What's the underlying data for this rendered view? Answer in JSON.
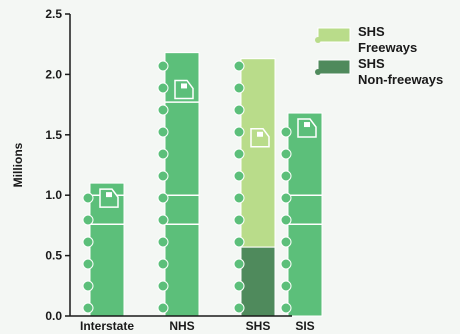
{
  "chart_data": {
    "type": "bar",
    "title": "",
    "xlabel": "",
    "ylabel": "Millions",
    "ylim": [
      0,
      2.5
    ],
    "yticks": [
      "0.0",
      "0.5",
      "1.0",
      "1.5",
      "2.0",
      "2.5"
    ],
    "grid": false,
    "legend_position": "top-right",
    "categories": [
      "Interstate",
      "NHS",
      "SHS",
      "SIS"
    ],
    "values": [
      1.1,
      2.18,
      2.13,
      1.68
    ],
    "series": [
      {
        "name": "SHS Freeways",
        "values": [
          null,
          null,
          1.56,
          null
        ],
        "color": "#b9dc8a"
      },
      {
        "name": "SHS Non-freeways",
        "values": [
          null,
          null,
          0.57,
          null
        ],
        "color": "#4f8a5c"
      }
    ],
    "bar_color": "#5cbf7a",
    "legend": [
      {
        "line1": "SHS",
        "line2": "Freeways",
        "color": "#b9dc8a"
      },
      {
        "line1": "SHS",
        "line2": "Non-freeways",
        "color": "#4f8a5c"
      }
    ]
  }
}
